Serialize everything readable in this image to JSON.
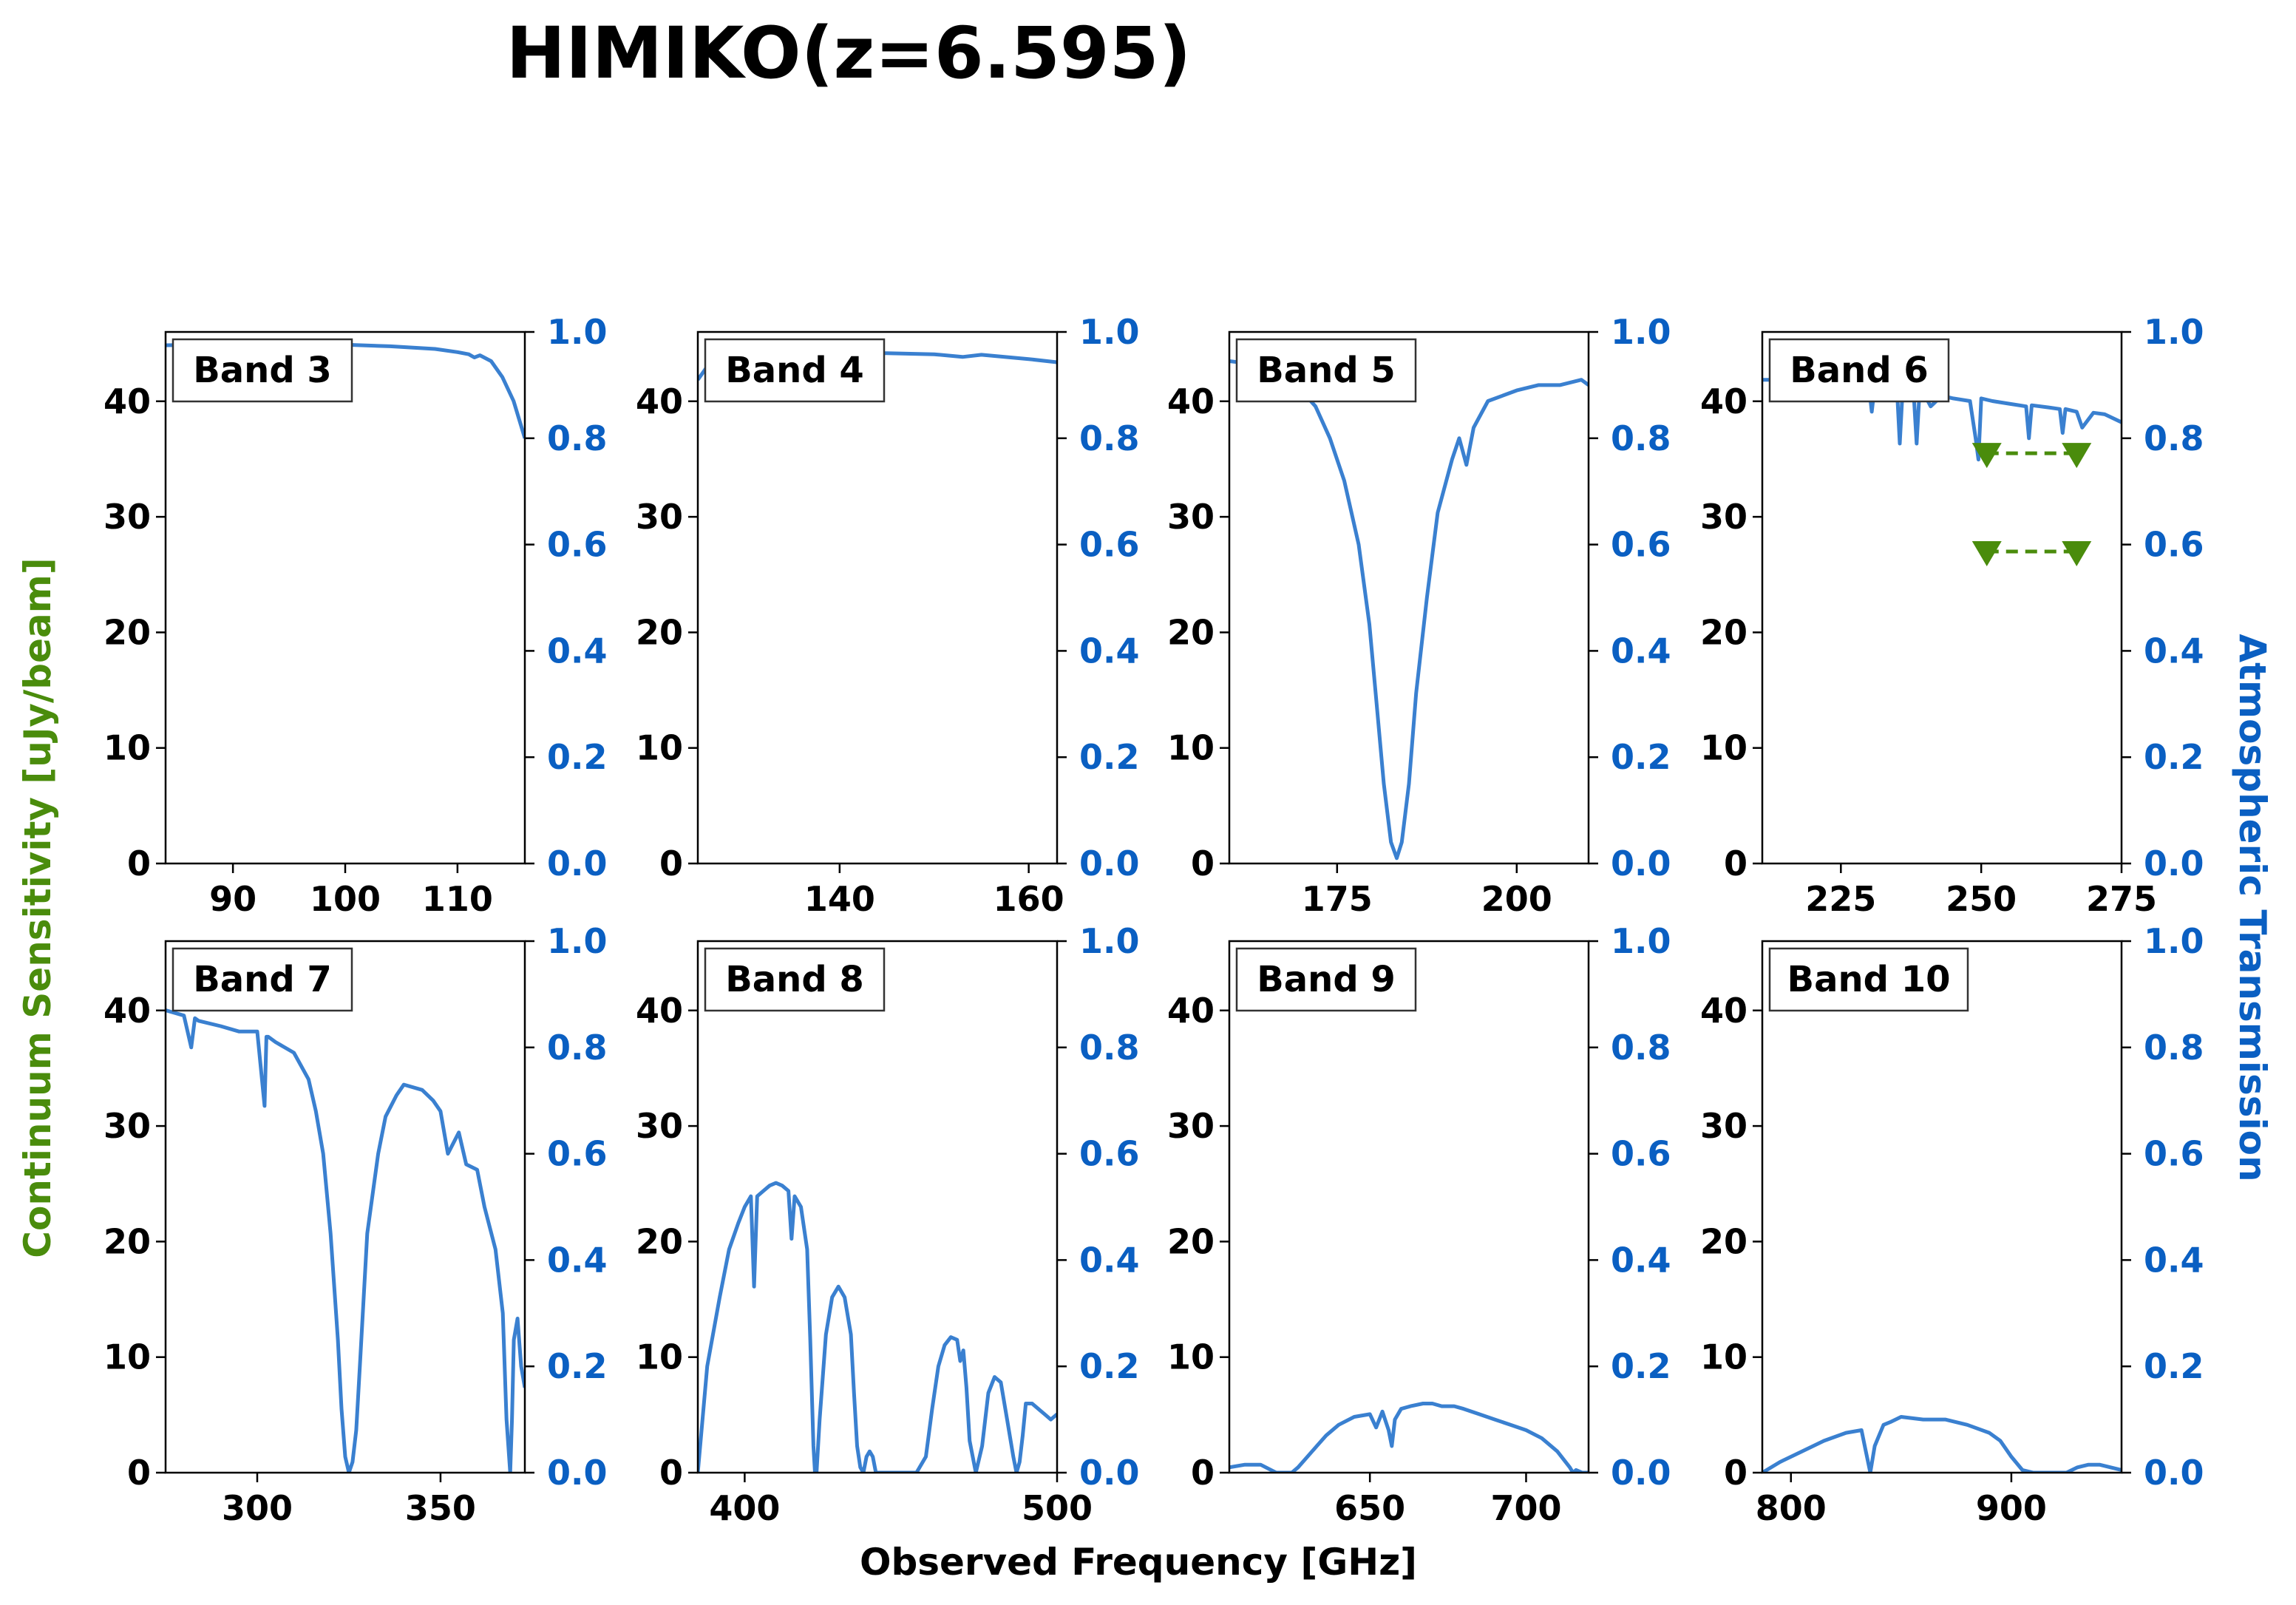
{
  "figure": {
    "title": "HIMIKO(z=6.595)",
    "xlabel": "Observed Frequency [GHz]",
    "ylabel_left": "Continuum Sensitivity [uJy/beam]",
    "ylabel_right": "Atmospheric Transmission",
    "left_label_color": "#4a8c0c",
    "right_tick_color": "#0a5fc2",
    "curve_color": "#3a80d0"
  },
  "chart_data": [
    {
      "type": "line",
      "panel_label": "Band 3",
      "xlim": [
        84,
        116
      ],
      "xticks": [
        90,
        100,
        110
      ],
      "ylim_left": [
        0,
        46
      ],
      "yticks_left": [
        0,
        10,
        20,
        30,
        40
      ],
      "ylim_right": [
        0,
        1
      ],
      "yticks_right": [
        0.0,
        0.2,
        0.4,
        0.6,
        0.8,
        1.0
      ],
      "series": [
        {
          "axis": "right",
          "x": [
            84,
            88,
            92,
            96,
            100,
            104,
            108,
            110,
            111,
            111.5,
            112,
            113,
            114,
            115,
            116
          ],
          "y": [
            0.975,
            0.976,
            0.977,
            0.977,
            0.976,
            0.973,
            0.968,
            0.962,
            0.958,
            0.952,
            0.956,
            0.945,
            0.915,
            0.87,
            0.8
          ]
        }
      ],
      "limits": []
    },
    {
      "type": "line",
      "panel_label": "Band 4",
      "xlim": [
        125,
        163
      ],
      "xticks": [
        140,
        160
      ],
      "ylim_left": [
        0,
        46
      ],
      "yticks_left": [
        0,
        10,
        20,
        30,
        40
      ],
      "ylim_right": [
        0,
        1
      ],
      "yticks_right": [
        0.0,
        0.2,
        0.4,
        0.6,
        0.8,
        1.0
      ],
      "series": [
        {
          "axis": "right",
          "x": [
            125,
            126,
            128,
            131,
            135,
            140,
            145,
            150,
            153,
            155,
            160,
            163
          ],
          "y": [
            0.91,
            0.935,
            0.948,
            0.955,
            0.958,
            0.96,
            0.96,
            0.958,
            0.953,
            0.957,
            0.949,
            0.943
          ]
        }
      ],
      "limits": []
    },
    {
      "type": "line",
      "panel_label": "Band 5",
      "xlim": [
        160,
        210
      ],
      "xticks": [
        175,
        200
      ],
      "ylim_left": [
        0,
        46
      ],
      "yticks_left": [
        0,
        10,
        20,
        30,
        40
      ],
      "ylim_right": [
        0,
        1
      ],
      "yticks_right": [
        0.0,
        0.2,
        0.4,
        0.6,
        0.8,
        1.0
      ],
      "series": [
        {
          "axis": "right",
          "x": [
            160,
            163,
            166,
            167,
            167.5,
            168,
            170,
            172,
            174,
            176,
            178,
            179.5,
            180.5,
            181.5,
            182.5,
            183.3,
            184,
            185,
            186,
            187.5,
            189,
            191,
            192,
            193,
            194,
            196,
            198,
            200,
            203,
            206,
            209,
            210
          ],
          "y": [
            0.945,
            0.94,
            0.93,
            0.885,
            0.93,
            0.91,
            0.89,
            0.86,
            0.8,
            0.72,
            0.6,
            0.45,
            0.3,
            0.15,
            0.04,
            0.01,
            0.04,
            0.15,
            0.32,
            0.5,
            0.66,
            0.76,
            0.8,
            0.75,
            0.82,
            0.87,
            0.88,
            0.89,
            0.9,
            0.9,
            0.91,
            0.9
          ]
        }
      ],
      "limits": []
    },
    {
      "type": "line",
      "panel_label": "Band 6",
      "xlim": [
        211,
        275
      ],
      "xticks": [
        225,
        250,
        275
      ],
      "ylim_left": [
        0,
        46
      ],
      "yticks_left": [
        0,
        10,
        20,
        30,
        40
      ],
      "ylim_right": [
        0,
        1
      ],
      "yticks_right": [
        0.0,
        0.2,
        0.4,
        0.6,
        0.8,
        1.0
      ],
      "series": [
        {
          "axis": "right",
          "x": [
            211,
            215,
            220,
            225,
            230,
            230.5,
            231,
            233,
            235,
            235.5,
            236,
            237,
            238,
            238.5,
            239,
            240,
            241,
            243,
            245,
            248,
            249,
            249.5,
            250,
            252,
            255,
            258,
            258.5,
            259,
            262,
            264,
            264.5,
            265,
            267,
            268,
            270,
            272,
            275
          ],
          "y": [
            0.91,
            0.91,
            0.905,
            0.9,
            0.898,
            0.85,
            0.895,
            0.893,
            0.89,
            0.79,
            0.89,
            0.885,
            0.88,
            0.79,
            0.885,
            0.88,
            0.86,
            0.88,
            0.875,
            0.87,
            0.8,
            0.76,
            0.875,
            0.87,
            0.865,
            0.86,
            0.8,
            0.862,
            0.858,
            0.855,
            0.81,
            0.855,
            0.85,
            0.82,
            0.848,
            0.845,
            0.83
          ]
        }
      ],
      "limits": [
        {
          "marker": "triangle-down",
          "color": "#4a8c0c",
          "x": [
            251,
            267
          ],
          "y": [
            35.5,
            35.5
          ]
        },
        {
          "marker": "triangle-down",
          "color": "#4a8c0c",
          "x": [
            251,
            267
          ],
          "y": [
            27,
            27
          ]
        }
      ]
    },
    {
      "type": "line",
      "panel_label": "Band 7",
      "xlim": [
        275,
        373
      ],
      "xticks": [
        300,
        350
      ],
      "ylim_left": [
        0,
        46
      ],
      "yticks_left": [
        0,
        10,
        20,
        30,
        40
      ],
      "ylim_right": [
        0,
        1
      ],
      "yticks_right": [
        0.0,
        0.2,
        0.4,
        0.6,
        0.8,
        1.0
      ],
      "series": [
        {
          "axis": "right",
          "x": [
            275,
            280,
            282,
            283,
            284,
            290,
            295,
            300,
            302,
            302.5,
            303,
            305,
            310,
            314,
            316,
            318,
            320,
            322,
            323,
            324,
            325,
            326,
            327,
            328,
            330,
            333,
            335,
            338,
            340,
            345,
            348,
            350,
            352,
            355,
            357,
            360,
            362,
            365,
            367,
            368,
            369,
            369.5,
            370,
            371,
            372,
            373
          ],
          "y": [
            0.87,
            0.86,
            0.8,
            0.855,
            0.85,
            0.84,
            0.83,
            0.83,
            0.69,
            0.82,
            0.82,
            0.81,
            0.79,
            0.74,
            0.68,
            0.6,
            0.45,
            0.25,
            0.12,
            0.03,
            0.0,
            0.02,
            0.08,
            0.2,
            0.45,
            0.6,
            0.67,
            0.71,
            0.73,
            0.72,
            0.7,
            0.68,
            0.6,
            0.64,
            0.58,
            0.57,
            0.5,
            0.42,
            0.3,
            0.1,
            0.0,
            0.1,
            0.25,
            0.29,
            0.2,
            0.16
          ]
        }
      ],
      "limits": []
    },
    {
      "type": "line",
      "panel_label": "Band 8",
      "xlim": [
        385,
        500
      ],
      "xticks": [
        400,
        500
      ],
      "ylim_left": [
        0,
        46
      ],
      "yticks_left": [
        0,
        10,
        20,
        30,
        40
      ],
      "ylim_right": [
        0,
        1
      ],
      "yticks_right": [
        0.0,
        0.2,
        0.4,
        0.6,
        0.8,
        1.0
      ],
      "series": [
        {
          "axis": "right",
          "x": [
            385,
            388,
            392,
            395,
            398,
            400,
            402,
            403,
            404,
            406,
            408,
            410,
            412,
            414,
            415,
            416,
            418,
            420,
            421,
            422,
            422.5,
            423,
            424,
            426,
            428,
            430,
            432,
            434,
            435,
            436,
            437,
            438,
            439,
            440,
            441,
            442,
            444,
            450,
            455,
            458,
            460,
            462,
            464,
            466,
            468,
            469,
            470,
            471,
            472,
            474,
            476,
            478,
            480,
            482,
            484,
            486,
            487,
            488,
            489,
            490,
            492,
            494,
            496,
            498,
            500
          ],
          "y": [
            0.0,
            0.2,
            0.33,
            0.42,
            0.47,
            0.5,
            0.52,
            0.35,
            0.52,
            0.53,
            0.54,
            0.545,
            0.54,
            0.53,
            0.44,
            0.52,
            0.5,
            0.42,
            0.25,
            0.05,
            0.0,
            0.0,
            0.1,
            0.26,
            0.33,
            0.35,
            0.33,
            0.26,
            0.15,
            0.05,
            0.01,
            0.0,
            0.03,
            0.04,
            0.03,
            0.0,
            0.0,
            0.0,
            0.0,
            0.03,
            0.12,
            0.2,
            0.24,
            0.255,
            0.25,
            0.21,
            0.23,
            0.16,
            0.06,
            0.0,
            0.05,
            0.15,
            0.18,
            0.17,
            0.1,
            0.03,
            0.0,
            0.02,
            0.07,
            0.13,
            0.13,
            0.12,
            0.11,
            0.1,
            0.11
          ]
        }
      ],
      "limits": []
    },
    {
      "type": "line",
      "panel_label": "Band 9",
      "xlim": [
        605,
        720
      ],
      "xticks": [
        650,
        700
      ],
      "ylim_left": [
        0,
        46
      ],
      "yticks_left": [
        0,
        10,
        20,
        30,
        40
      ],
      "ylim_right": [
        0,
        1
      ],
      "yticks_right": [
        0.0,
        0.2,
        0.4,
        0.6,
        0.8,
        1.0
      ],
      "series": [
        {
          "axis": "right",
          "x": [
            605,
            610,
            615,
            620,
            623,
            625,
            627,
            630,
            633,
            636,
            640,
            645,
            650,
            652,
            654,
            656,
            657,
            658,
            660,
            663,
            667,
            670,
            673,
            677,
            680,
            685,
            690,
            695,
            700,
            705,
            710,
            714,
            715,
            716,
            718,
            720
          ],
          "y": [
            0.01,
            0.015,
            0.015,
            0.0,
            0.0,
            0.0,
            0.01,
            0.03,
            0.05,
            0.07,
            0.09,
            0.105,
            0.11,
            0.085,
            0.115,
            0.08,
            0.05,
            0.1,
            0.12,
            0.125,
            0.13,
            0.13,
            0.125,
            0.125,
            0.12,
            0.11,
            0.1,
            0.09,
            0.08,
            0.065,
            0.04,
            0.01,
            0.0,
            0.005,
            0.0,
            0.0
          ]
        }
      ],
      "limits": []
    },
    {
      "type": "line",
      "panel_label": "Band 10",
      "xlim": [
        787,
        950
      ],
      "xticks": [
        800,
        900
      ],
      "ylim_left": [
        0,
        46
      ],
      "yticks_left": [
        0,
        10,
        20,
        30,
        40
      ],
      "ylim_right": [
        0,
        1
      ],
      "yticks_right": [
        0.0,
        0.2,
        0.4,
        0.6,
        0.8,
        1.0
      ],
      "series": [
        {
          "axis": "right",
          "x": [
            787,
            795,
            805,
            815,
            825,
            832,
            834,
            836,
            838,
            840,
            842,
            845,
            850,
            860,
            870,
            880,
            890,
            895,
            900,
            905,
            910,
            915,
            920,
            925,
            930,
            935,
            940,
            945,
            950
          ],
          "y": [
            0.0,
            0.02,
            0.04,
            0.06,
            0.075,
            0.08,
            0.04,
            0.0,
            0.05,
            0.07,
            0.09,
            0.095,
            0.105,
            0.1,
            0.1,
            0.09,
            0.075,
            0.06,
            0.03,
            0.005,
            0.0,
            0.0,
            0.0,
            0.0,
            0.01,
            0.015,
            0.015,
            0.01,
            0.005
          ]
        }
      ],
      "limits": []
    }
  ]
}
